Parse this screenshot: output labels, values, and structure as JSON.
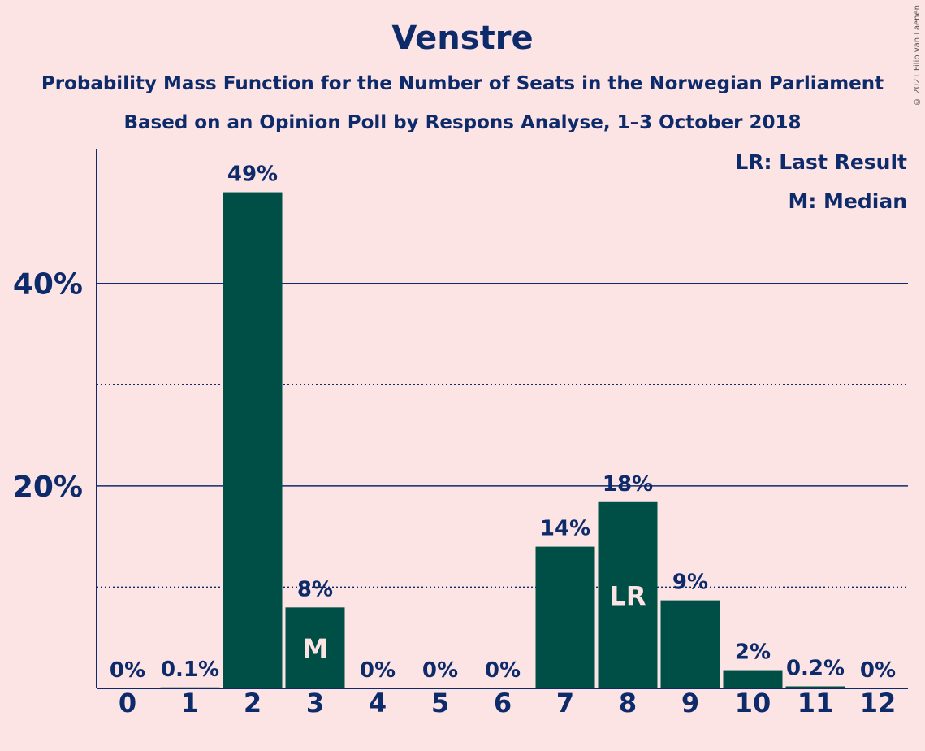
{
  "chart_data": {
    "type": "bar",
    "title": "Venstre",
    "subtitle": [
      "Probability Mass Function for the Number of Seats in the Norwegian Parliament",
      "Based on an Opinion Poll by Respons Analyse, 1–3 October 2018"
    ],
    "categories": [
      "0",
      "1",
      "2",
      "3",
      "4",
      "5",
      "6",
      "7",
      "8",
      "9",
      "10",
      "11",
      "12"
    ],
    "values": [
      0,
      0.1,
      49,
      8,
      0,
      0,
      0,
      14,
      18.4,
      8.7,
      1.8,
      0.2,
      0
    ],
    "value_labels": [
      "0%",
      "0.1%",
      "49%",
      "8%",
      "0%",
      "0%",
      "0%",
      "14%",
      "18%",
      "9%",
      "2%",
      "0.2%",
      "0%"
    ],
    "bar_markers": {
      "3": "M",
      "8": "LR"
    },
    "ylim": [
      0,
      53.3
    ],
    "y_ticks_major": [
      20,
      40
    ],
    "y_tick_labels": [
      "20%",
      "40%"
    ],
    "y_ticks_minor": [
      10,
      30
    ],
    "legend": [
      "LR: Last Result",
      "M: Median"
    ],
    "legend_position": "top-right",
    "colors": {
      "bar": "#004f46",
      "text": "#0d2a6b",
      "background": "#fde4e4",
      "marker_text": "#fde4e4"
    }
  },
  "copyright": "© 2021 Filip van Laenen"
}
